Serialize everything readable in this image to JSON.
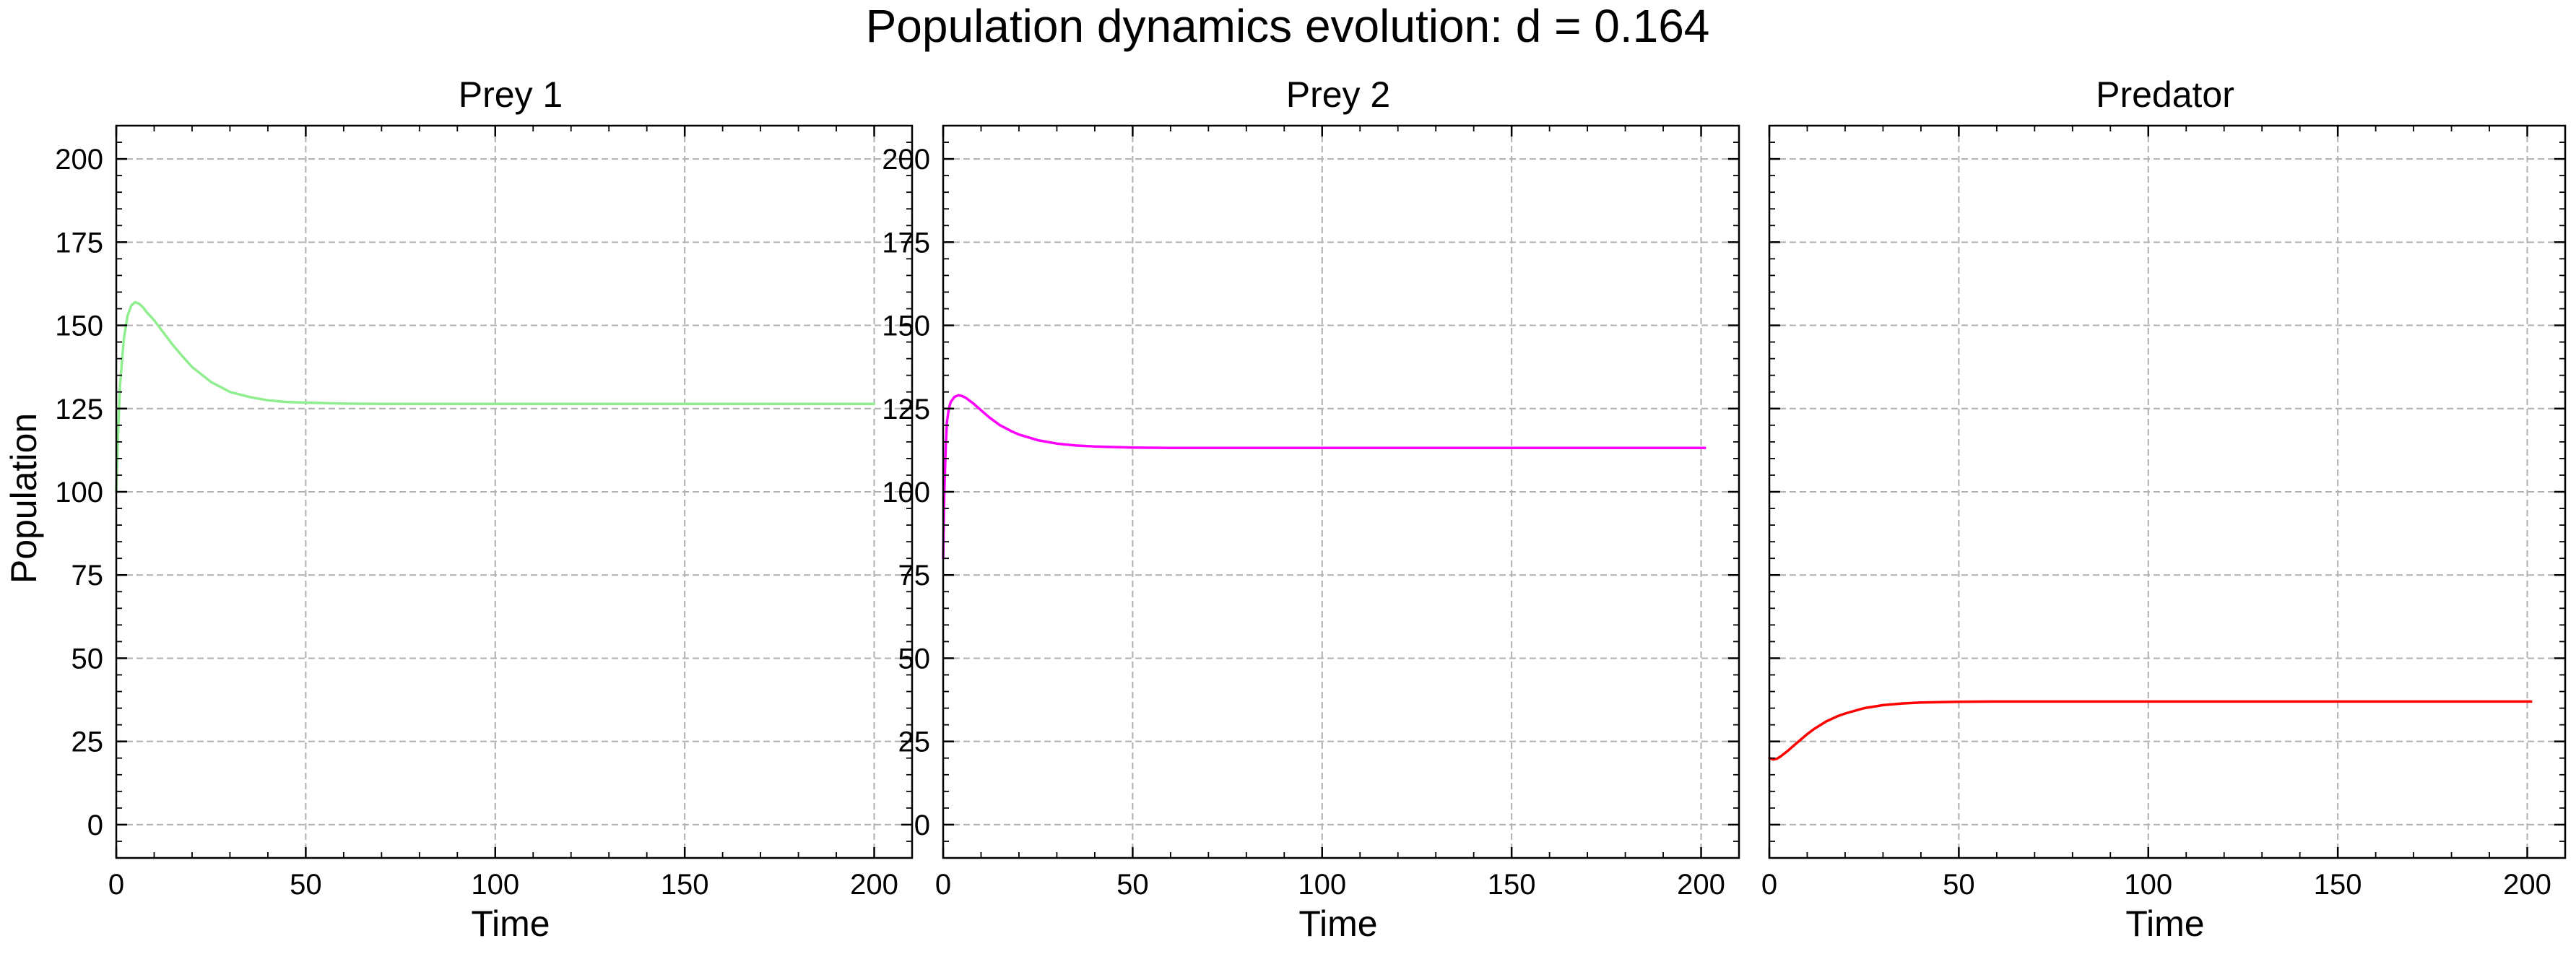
{
  "figure": {
    "title": "Population dynamics evolution: d = 0.164",
    "shared_ylabel": "Population"
  },
  "chart_data": [
    {
      "type": "line",
      "title": "Prey 1",
      "xlabel": "Time",
      "ylabel": "Population",
      "xlim": [
        0,
        210
      ],
      "ylim": [
        -10,
        210
      ],
      "xticks": [
        0,
        50,
        100,
        150,
        200
      ],
      "yticks": [
        0,
        25,
        50,
        75,
        100,
        125,
        150,
        175,
        200
      ],
      "grid": true,
      "series": [
        {
          "color": "#90ee90",
          "x": [
            0,
            0.5,
            1,
            2,
            3,
            4,
            5,
            6,
            7,
            8,
            10,
            12,
            15,
            18,
            20,
            25,
            30,
            35,
            40,
            45,
            50,
            60,
            70,
            80,
            100,
            150,
            200
          ],
          "y": [
            100,
            118,
            132,
            146,
            153,
            156,
            157,
            156.5,
            155.5,
            154,
            151.5,
            148.5,
            144,
            140,
            137.5,
            133,
            130,
            128.5,
            127.5,
            127,
            126.8,
            126.5,
            126.4,
            126.4,
            126.4,
            126.4,
            126.4
          ]
        }
      ]
    },
    {
      "type": "line",
      "title": "Prey 2",
      "xlabel": "Time",
      "ylabel": "",
      "xlim": [
        0,
        210
      ],
      "ylim": [
        -10,
        210
      ],
      "xticks": [
        0,
        50,
        100,
        150,
        200
      ],
      "yticks": [
        0,
        25,
        50,
        75,
        100,
        125,
        150,
        175,
        200
      ],
      "grid": true,
      "series": [
        {
          "color": "#ff00ff",
          "x": [
            0,
            0.3,
            0.7,
            1,
            1.5,
            2,
            3,
            4,
            5,
            6,
            8,
            10,
            12,
            15,
            18,
            20,
            25,
            30,
            35,
            40,
            50,
            60,
            80,
            100,
            150,
            201
          ],
          "y": [
            80,
            100,
            114,
            121,
            125,
            127,
            128.5,
            129,
            128.8,
            128.2,
            126.5,
            124.5,
            122.5,
            120,
            118.2,
            117.2,
            115.5,
            114.5,
            113.9,
            113.6,
            113.3,
            113.2,
            113.2,
            113.2,
            113.2,
            113.2
          ]
        }
      ]
    },
    {
      "type": "line",
      "title": "Predator",
      "xlabel": "Time",
      "ylabel": "",
      "xlim": [
        0,
        210
      ],
      "ylim": [
        -10,
        210
      ],
      "xticks": [
        0,
        50,
        100,
        150,
        200
      ],
      "yticks": [],
      "grid": true,
      "series": [
        {
          "color": "#ff0000",
          "x": [
            0,
            1,
            2,
            3,
            5,
            7,
            10,
            12,
            15,
            18,
            20,
            25,
            30,
            35,
            40,
            45,
            50,
            60,
            70,
            80,
            100,
            150,
            201
          ],
          "y": [
            20,
            19.6,
            19.8,
            20.5,
            22.3,
            24.3,
            27.2,
            28.9,
            31,
            32.6,
            33.4,
            35,
            35.9,
            36.4,
            36.7,
            36.8,
            36.9,
            37,
            37,
            37,
            37,
            37,
            37
          ]
        }
      ]
    }
  ]
}
